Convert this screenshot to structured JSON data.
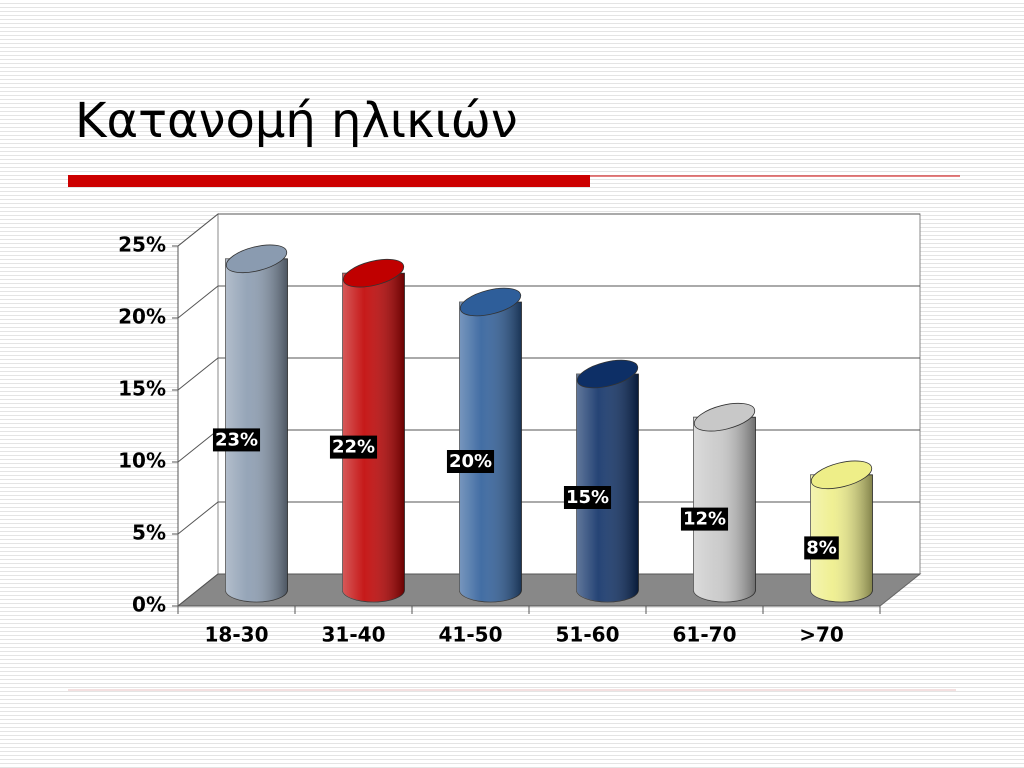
{
  "chart_data": {
    "type": "bar",
    "title": "Κατανομή ηλικιών",
    "categories": [
      "18-30",
      "31-40",
      "41-50",
      "51-60",
      "61-70",
      ">70"
    ],
    "values": [
      23,
      22,
      20,
      15,
      12,
      8
    ],
    "value_labels": [
      "23%",
      "22%",
      "20%",
      "15%",
      "12%",
      "8%"
    ],
    "colors": [
      "#8a9bb0",
      "#c00000",
      "#2e5e9a",
      "#0d2f66",
      "#c8c8c8",
      "#eeee88"
    ],
    "ylim": [
      0,
      25
    ],
    "yticks": [
      {
        "value": 0,
        "label": "0%"
      },
      {
        "value": 5,
        "label": "5%"
      },
      {
        "value": 10,
        "label": "10%"
      },
      {
        "value": 15,
        "label": "15%"
      },
      {
        "value": 20,
        "label": "20%"
      },
      {
        "value": 25,
        "label": "25%"
      }
    ],
    "grid": true
  }
}
